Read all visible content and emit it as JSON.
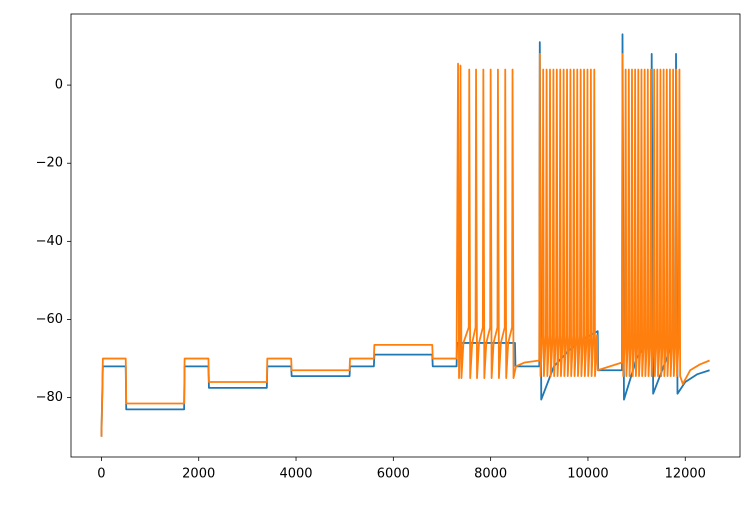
{
  "chart_data": {
    "type": "line",
    "xlim": [
      -625,
      13125
    ],
    "ylim": [
      -95.2,
      18.2
    ],
    "xticks": [
      0,
      2000,
      4000,
      6000,
      8000,
      10000,
      12000
    ],
    "yticks": [
      {
        "value": -80,
        "label": "−80"
      },
      {
        "value": -60,
        "label": "−60"
      },
      {
        "value": -40,
        "label": "−40"
      },
      {
        "value": -20,
        "label": "−20"
      },
      0
    ],
    "series": [
      {
        "color": "#1f77b4",
        "x": [
          0,
          30,
          500,
          510,
          1700,
          1710,
          2200,
          2210,
          3400,
          3410,
          3900,
          3910,
          5100,
          5110,
          5600,
          5610,
          6800,
          6810,
          7300,
          7310,
          8500,
          8510,
          9000,
          9010,
          9040,
          9300,
          9600,
          9900,
          10200,
          10210,
          10700,
          10710,
          10740,
          11000,
          11300,
          11310,
          11340,
          11800,
          11810,
          11840,
          12000,
          12250,
          12500
        ],
        "values": [
          -90,
          -72,
          -72,
          -83,
          -83,
          -72,
          -72,
          -77.5,
          -77.5,
          -72,
          -72,
          -74.5,
          -74.5,
          -72,
          -72,
          -69,
          -69,
          -72,
          -72,
          -66,
          -66,
          -72,
          -72,
          11,
          -80.5,
          -72,
          -68,
          -65,
          -63,
          -73,
          -73,
          13,
          -80.5,
          -70,
          -64,
          8,
          -79,
          -64,
          8,
          -79,
          -76,
          -74,
          -73
        ]
      },
      {
        "color": "#ff7f0e",
        "x": [
          0,
          30,
          500,
          510,
          1700,
          1710,
          2200,
          2210,
          3400,
          3410,
          3900,
          3910,
          5100,
          5110,
          5600,
          5610,
          6800,
          6810,
          7300,
          7330,
          7350,
          7370,
          7380,
          7400,
          7440,
          7550,
          7560,
          7580,
          7620,
          7690,
          7700,
          7720,
          7760,
          7840,
          7850,
          7870,
          7910,
          7990,
          8000,
          8020,
          8060,
          8140,
          8150,
          8170,
          8210,
          8290,
          8300,
          8320,
          8360,
          8440,
          8450,
          8470,
          8520,
          8700,
          9000,
          9010,
          9025,
          9065,
          9080,
          9095,
          9135,
          9150,
          9165,
          9205,
          9220,
          9235,
          9275,
          9290,
          9305,
          9345,
          9360,
          9375,
          9415,
          9430,
          9445,
          9485,
          9500,
          9515,
          9555,
          9570,
          9585,
          9625,
          9640,
          9655,
          9695,
          9710,
          9725,
          9765,
          9780,
          9795,
          9835,
          9850,
          9865,
          9905,
          9920,
          9935,
          9975,
          9990,
          10005,
          10045,
          10060,
          10075,
          10115,
          10130,
          10145,
          10185,
          10200,
          10450,
          10700,
          10710,
          10725,
          10760,
          10775,
          10790,
          10825,
          10840,
          10855,
          10890,
          10905,
          10920,
          10955,
          10970,
          10985,
          11020,
          11035,
          11050,
          11085,
          11100,
          11115,
          11150,
          11165,
          11180,
          11215,
          11230,
          11245,
          11280,
          11295,
          11310,
          11345,
          11360,
          11375,
          11410,
          11425,
          11440,
          11475,
          11490,
          11505,
          11540,
          11555,
          11570,
          11605,
          11620,
          11635,
          11670,
          11685,
          11700,
          11735,
          11750,
          11765,
          11800,
          11815,
          11830,
          11865,
          11880,
          11895,
          11950,
          12100,
          12300,
          12500
        ],
        "values": [
          -90,
          -70,
          -70,
          -81.5,
          -81.5,
          -70,
          -70,
          -76,
          -76,
          -70,
          -70,
          -73,
          -73,
          -70,
          -70,
          -66.5,
          -66.5,
          -70,
          -70,
          5.5,
          -75,
          -66,
          5,
          -75,
          -66,
          -62,
          4,
          -75,
          -66,
          -62,
          4,
          -75,
          -66,
          -62,
          4,
          -75,
          -66,
          -62,
          4,
          -75,
          -66,
          -62,
          4,
          -75,
          -66,
          -62,
          4,
          -75,
          -66,
          -62,
          4,
          -75,
          -72,
          -71,
          -70.5,
          8,
          -74.5,
          -64,
          4,
          -74.5,
          -64,
          4,
          -74.5,
          -64,
          4,
          -74.5,
          -64,
          4,
          -74.5,
          -64,
          4,
          -74.5,
          -64,
          4,
          -74.5,
          -64,
          4,
          -74.5,
          -64,
          4,
          -74.5,
          -64,
          4,
          -74.5,
          -64,
          4,
          -74.5,
          -64,
          4,
          -74.5,
          -64,
          4,
          -74.5,
          -64,
          4,
          -74.5,
          -64,
          4,
          -74.5,
          -64,
          4,
          -74.5,
          -64,
          4,
          -74.5,
          -64,
          -73,
          -72,
          -71,
          8,
          -74.5,
          -65,
          4,
          -74.5,
          -65,
          4,
          -74.5,
          -65,
          4,
          -74.5,
          -65,
          4,
          -74.5,
          -65,
          4,
          -74.5,
          -65,
          4,
          -74.5,
          -65,
          4,
          -74.5,
          -65,
          4,
          -74.5,
          -65,
          4,
          -74.5,
          -65,
          4,
          -74.5,
          -65,
          4,
          -74.5,
          -65,
          4,
          -74.5,
          -65,
          4,
          -74.5,
          -65,
          4,
          -74.5,
          -65,
          4,
          -74.5,
          -65,
          4,
          -74.5,
          -65,
          4,
          -74.5,
          -65,
          4,
          -74.5,
          -76.5,
          -73,
          -71.5,
          -70.5
        ]
      }
    ]
  }
}
